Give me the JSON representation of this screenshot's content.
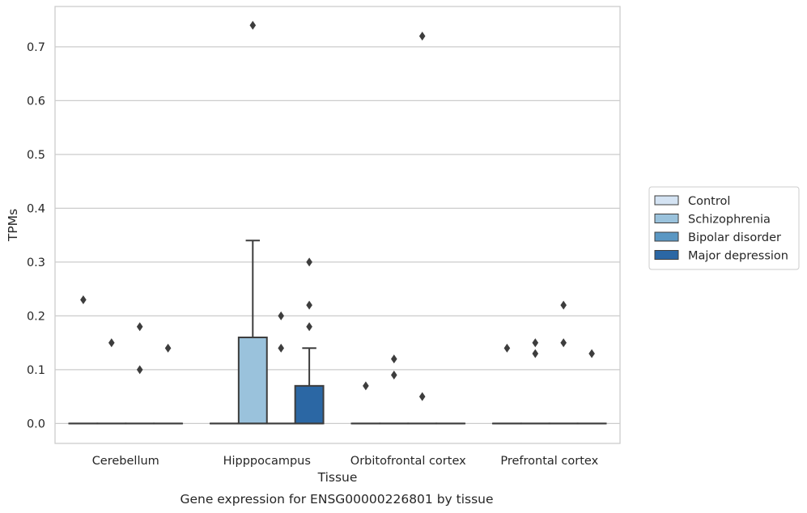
{
  "caption": "Gene expression for ENSG00000226801 by tissue",
  "chart_data": {
    "type": "box",
    "title": "",
    "xlabel": "Tissue",
    "ylabel": "TPMs",
    "ylim": [
      -0.037,
      0.775
    ],
    "yticks": [
      "0.0",
      "0.1",
      "0.2",
      "0.3",
      "0.4",
      "0.5",
      "0.6",
      "0.7"
    ],
    "grid": "horizontal",
    "legend_position": "right",
    "categories": [
      "Cerebellum",
      "Hipppocampus",
      "Orbitofrontal cortex",
      "Prefrontal cortex"
    ],
    "series": [
      {
        "name": "Control",
        "color": "#d4e3f3",
        "boxes": [
          {
            "q1": 0,
            "median": 0,
            "q3": 0,
            "whisker_low": 0,
            "whisker_high": 0,
            "outliers": [
              0.23
            ]
          },
          {
            "q1": 0,
            "median": 0,
            "q3": 0,
            "whisker_low": 0,
            "whisker_high": 0,
            "outliers": []
          },
          {
            "q1": 0,
            "median": 0,
            "q3": 0,
            "whisker_low": 0,
            "whisker_high": 0,
            "outliers": [
              0.07
            ]
          },
          {
            "q1": 0,
            "median": 0,
            "q3": 0,
            "whisker_low": 0,
            "whisker_high": 0,
            "outliers": [
              0.14
            ]
          }
        ]
      },
      {
        "name": "Schizophrenia",
        "color": "#9ac2dc",
        "boxes": [
          {
            "q1": 0,
            "median": 0,
            "q3": 0,
            "whisker_low": 0,
            "whisker_high": 0,
            "outliers": [
              0.15
            ]
          },
          {
            "q1": 0,
            "median": 0,
            "q3": 0.16,
            "whisker_low": 0,
            "whisker_high": 0.34,
            "outliers": [
              0.74
            ]
          },
          {
            "q1": 0,
            "median": 0,
            "q3": 0,
            "whisker_low": 0,
            "whisker_high": 0,
            "outliers": [
              0.09,
              0.12
            ]
          },
          {
            "q1": 0,
            "median": 0,
            "q3": 0,
            "whisker_low": 0,
            "whisker_high": 0,
            "outliers": [
              0.13,
              0.15
            ]
          }
        ]
      },
      {
        "name": "Bipolar disorder",
        "color": "#5a97c3",
        "boxes": [
          {
            "q1": 0,
            "median": 0,
            "q3": 0,
            "whisker_low": 0,
            "whisker_high": 0,
            "outliers": [
              0.1,
              0.18
            ]
          },
          {
            "q1": 0,
            "median": 0,
            "q3": 0,
            "whisker_low": 0,
            "whisker_high": 0,
            "outliers": [
              0.14,
              0.2
            ]
          },
          {
            "q1": 0,
            "median": 0,
            "q3": 0,
            "whisker_low": 0,
            "whisker_high": 0,
            "outliers": [
              0.05,
              0.72
            ]
          },
          {
            "q1": 0,
            "median": 0,
            "q3": 0,
            "whisker_low": 0,
            "whisker_high": 0,
            "outliers": [
              0.15,
              0.22
            ]
          }
        ]
      },
      {
        "name": "Major depression",
        "color": "#2b67a4",
        "boxes": [
          {
            "q1": 0,
            "median": 0,
            "q3": 0,
            "whisker_low": 0,
            "whisker_high": 0,
            "outliers": [
              0.14
            ]
          },
          {
            "q1": 0,
            "median": 0,
            "q3": 0.07,
            "whisker_low": 0,
            "whisker_high": 0.14,
            "outliers": [
              0.18,
              0.22,
              0.3
            ]
          },
          {
            "q1": 0,
            "median": 0,
            "q3": 0,
            "whisker_low": 0,
            "whisker_high": 0,
            "outliers": []
          },
          {
            "q1": 0,
            "median": 0,
            "q3": 0,
            "whisker_low": 0,
            "whisker_high": 0,
            "outliers": [
              0.13
            ]
          }
        ]
      }
    ]
  }
}
